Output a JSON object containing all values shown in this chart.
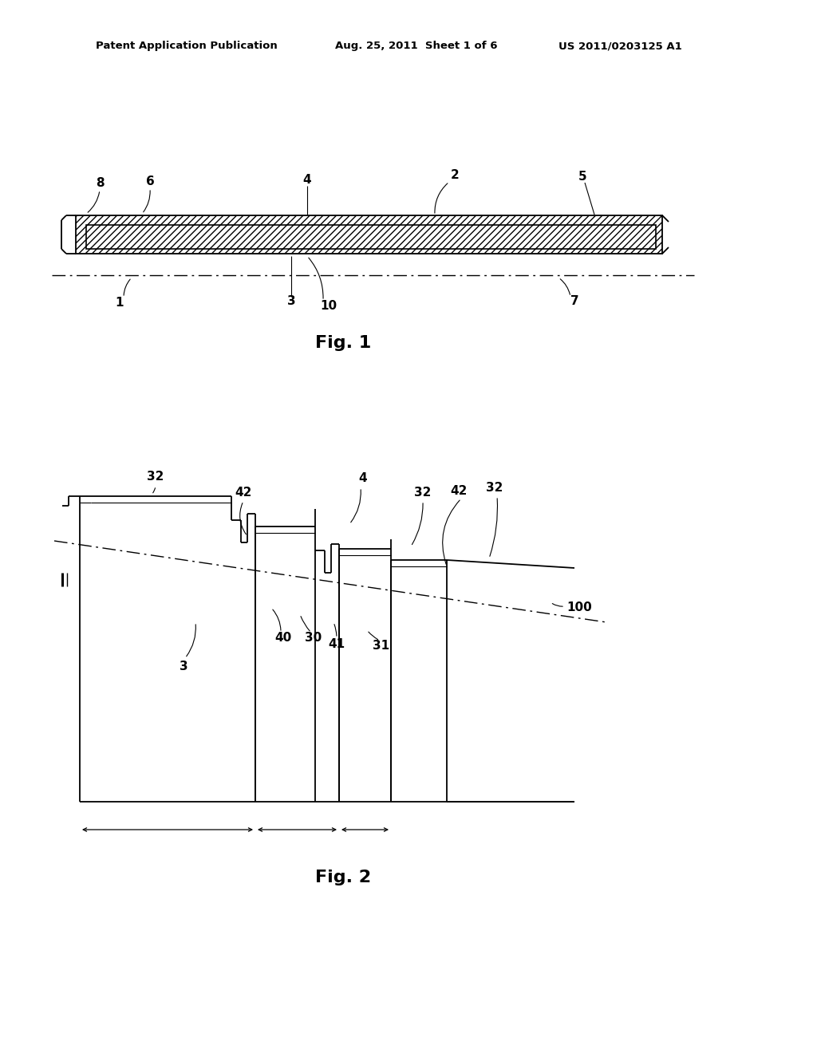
{
  "bg_color": "#ffffff",
  "header_left": "Patent Application Publication",
  "header_mid": "Aug. 25, 2011  Sheet 1 of 6",
  "header_right": "US 2011/0203125 A1",
  "fig1_caption": "Fig. 1",
  "fig2_caption": "Fig. 2"
}
